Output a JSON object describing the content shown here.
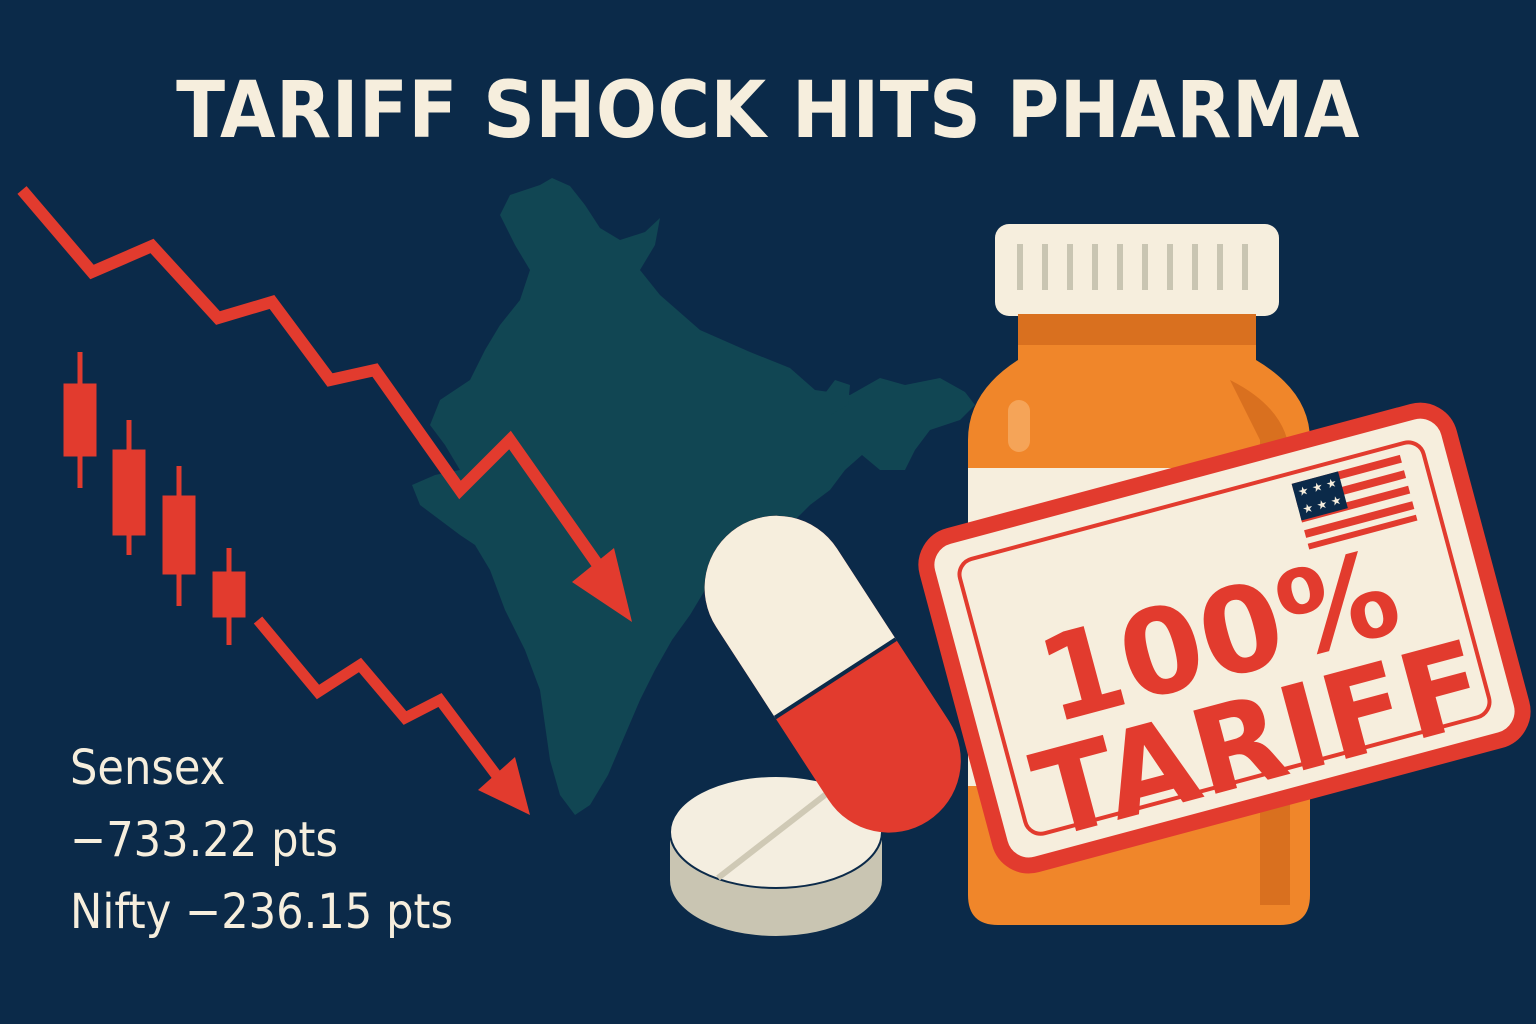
{
  "headline": "TARIFF SHOCK HITS PHARMA",
  "stats": {
    "sensex_label": "Sensex",
    "sensex_value": "−733.22 pts",
    "nifty_line": "Nifty −236.15 pts"
  },
  "stamp": {
    "percent": "100%",
    "word": "TARIFF"
  },
  "icons": {
    "flag": "us-flag-icon",
    "map": "india-map",
    "trend": "downward-arrow"
  },
  "colors": {
    "background": "#0b2a49",
    "accent_red": "#e23b2e",
    "cream": "#f6eedd",
    "bottle_orange": "#f0862a",
    "map_teal": "#114653"
  }
}
